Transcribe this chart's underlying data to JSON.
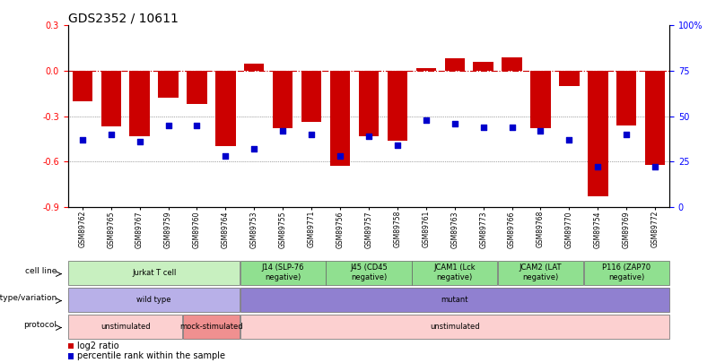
{
  "title": "GDS2352 / 10611",
  "samples": [
    "GSM89762",
    "GSM89765",
    "GSM89767",
    "GSM89759",
    "GSM89760",
    "GSM89764",
    "GSM89753",
    "GSM89755",
    "GSM89771",
    "GSM89756",
    "GSM89757",
    "GSM89758",
    "GSM89761",
    "GSM89763",
    "GSM89773",
    "GSM89766",
    "GSM89768",
    "GSM89770",
    "GSM89754",
    "GSM89769",
    "GSM89772"
  ],
  "log2_ratio": [
    -0.2,
    -0.37,
    -0.43,
    -0.18,
    -0.22,
    -0.5,
    0.05,
    -0.38,
    -0.34,
    -0.63,
    -0.43,
    -0.46,
    0.02,
    0.08,
    0.06,
    0.09,
    -0.38,
    -0.1,
    -0.83,
    -0.36,
    -0.62
  ],
  "percentile_rank": [
    37,
    40,
    36,
    45,
    45,
    28,
    32,
    42,
    40,
    28,
    39,
    34,
    48,
    46,
    44,
    44,
    42,
    37,
    22,
    40,
    22
  ],
  "ylim_left": [
    -0.9,
    0.3
  ],
  "yticks_left": [
    -0.9,
    -0.6,
    -0.3,
    0.0,
    0.3
  ],
  "yticks_right": [
    0,
    25,
    50,
    75,
    100
  ],
  "cell_line_groups": [
    {
      "label": "Jurkat T cell",
      "start": 0,
      "end": 6,
      "color": "#c8f0c0"
    },
    {
      "label": "J14 (SLP-76\nnegative)",
      "start": 6,
      "end": 9,
      "color": "#90e090"
    },
    {
      "label": "J45 (CD45\nnegative)",
      "start": 9,
      "end": 12,
      "color": "#90e090"
    },
    {
      "label": "JCAM1 (Lck\nnegative)",
      "start": 12,
      "end": 15,
      "color": "#90e090"
    },
    {
      "label": "JCAM2 (LAT\nnegative)",
      "start": 15,
      "end": 18,
      "color": "#90e090"
    },
    {
      "label": "P116 (ZAP70\nnegative)",
      "start": 18,
      "end": 21,
      "color": "#90e090"
    }
  ],
  "genotype_groups": [
    {
      "label": "wild type",
      "start": 0,
      "end": 6,
      "color": "#b8b0e8"
    },
    {
      "label": "mutant",
      "start": 6,
      "end": 21,
      "color": "#9080d0"
    }
  ],
  "protocol_groups": [
    {
      "label": "unstimulated",
      "start": 0,
      "end": 4,
      "color": "#fcd0d0"
    },
    {
      "label": "mock-stimulated",
      "start": 4,
      "end": 6,
      "color": "#f09090"
    },
    {
      "label": "unstimulated",
      "start": 6,
      "end": 21,
      "color": "#fcd0d0"
    }
  ],
  "bar_color": "#cc0000",
  "dot_color": "#0000cc",
  "hline_color": "#cc0000",
  "grid_color": "#555555",
  "title_fontsize": 10,
  "tick_fontsize": 7,
  "sample_fontsize": 5.5
}
